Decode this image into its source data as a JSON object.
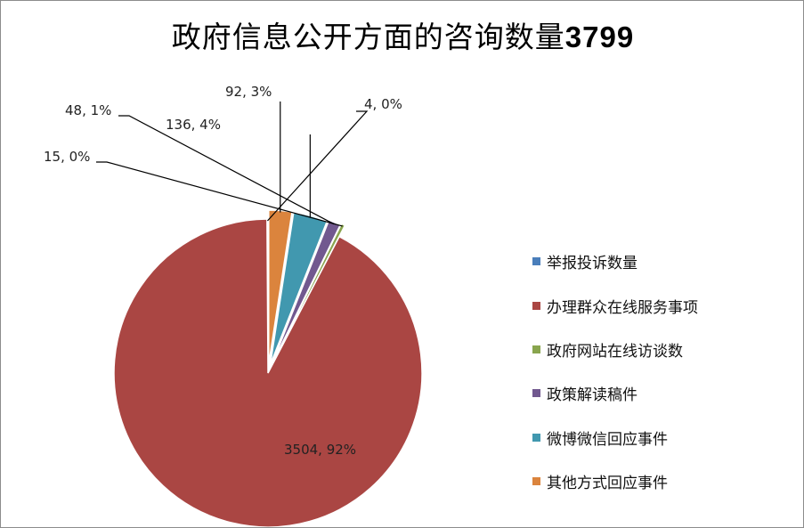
{
  "title": {
    "text": "政府信息公开方面的咨询数量",
    "number": "3799"
  },
  "chart_data": {
    "type": "pie",
    "title": "政府信息公开方面的咨询数量3799",
    "categories": [
      "举报投诉数量",
      "办理群众在线服务事项",
      "政府网站在线访谈数",
      "政策解读稿件",
      "微博微信回应事件",
      "其他方式回应事件"
    ],
    "values": [
      4,
      3504,
      15,
      48,
      136,
      92
    ],
    "data_labels": [
      "4, 0%",
      "3504, 92%",
      "15, 0%",
      "48, 1%",
      "136, 4%",
      "92, 3%"
    ],
    "colors": [
      "#4a7ebb",
      "#aa4643",
      "#89a54e",
      "#71588f",
      "#4198af",
      "#db843d"
    ],
    "legend_position": "right"
  }
}
